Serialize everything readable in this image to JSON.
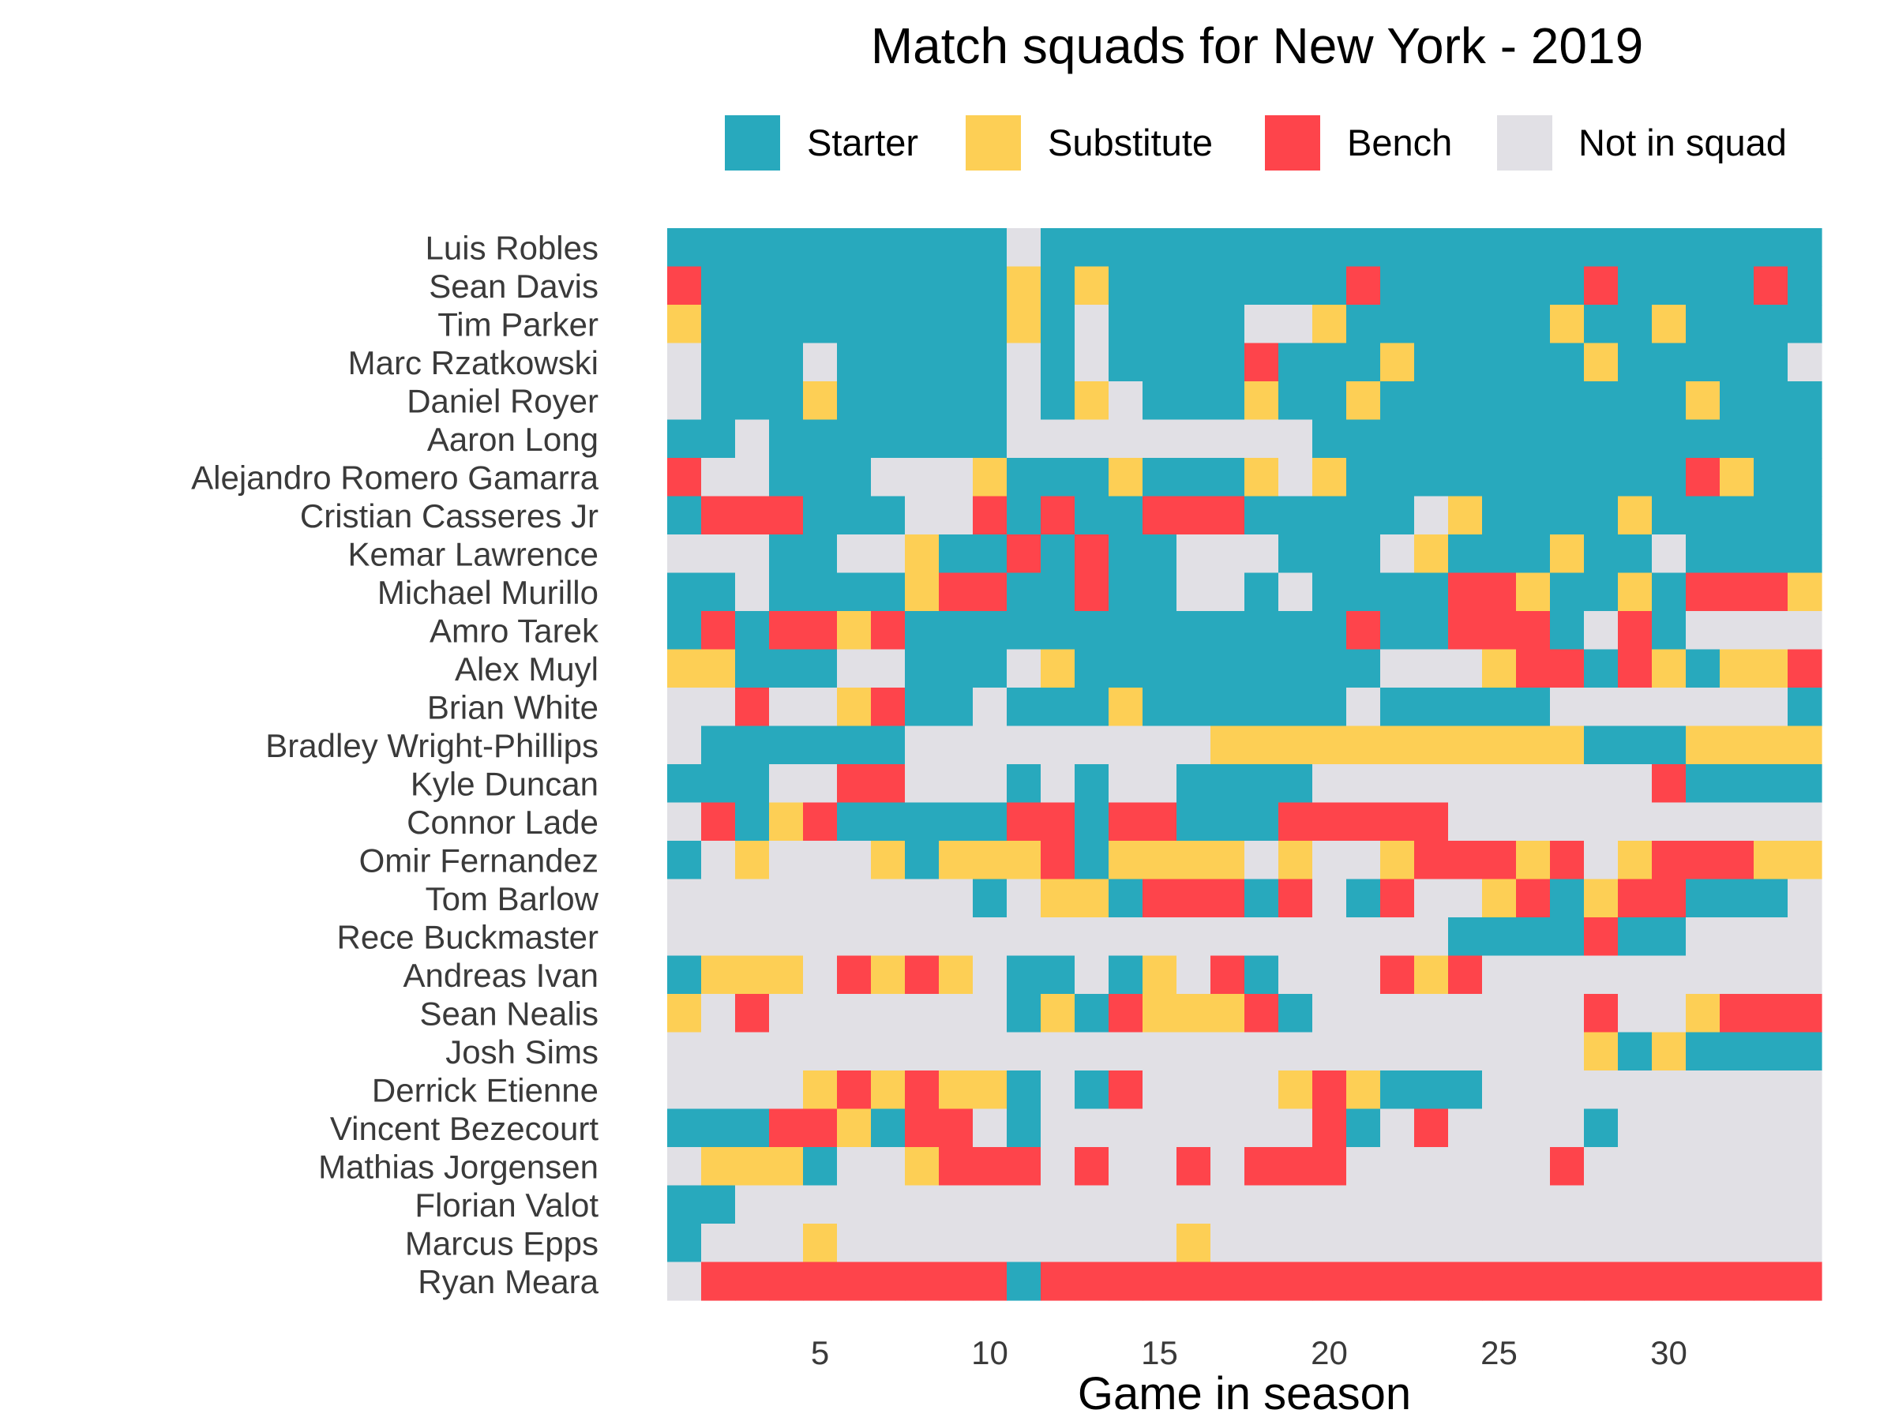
{
  "chart_data": {
    "type": "heatmap",
    "title": "Match squads for New York - 2019",
    "xlabel": "Game in season",
    "ylabel": "",
    "xlim": [
      1,
      34
    ],
    "xticks": [
      5,
      10,
      15,
      20,
      25,
      30
    ],
    "grid": false,
    "legend_position": "top",
    "legend": [
      {
        "code": "S",
        "label": "Starter",
        "color": "#28A9BD"
      },
      {
        "code": "U",
        "label": "Substitute",
        "color": "#FDCF55"
      },
      {
        "code": "B",
        "label": "Bench",
        "color": "#FE444B"
      },
      {
        "code": "N",
        "label": "Not in squad",
        "color": "#E1E0E5"
      }
    ],
    "players": [
      {
        "name": "Luis Robles",
        "games": "SSSSSSSSSSNSSSSSSSSSSSSSSSSSSSSSSS"
      },
      {
        "name": "Sean Davis",
        "games": "BSSSSSSSSSUSUSSSSSSSBSSSSSSBSSSSBS"
      },
      {
        "name": "Tim Parker",
        "games": "USSSSSSSSSUSNSSSSNNUSSSSSSUSSUSSSS"
      },
      {
        "name": "Marc Rzatkowski",
        "games": "NSSSNSSSSSNSNSSSSBSSSUSSSSSUSSSSSN"
      },
      {
        "name": "Daniel Royer",
        "games": "NSSSUSSSSSNSUNSSSUSSUSSSSSSSSSUSSS"
      },
      {
        "name": "Aaron Long",
        "games": "SSNSSSSSSSNNNNNNNNNSSSSSSSSSSSSSSS"
      },
      {
        "name": "Alejandro Romero Gamarra",
        "games": "BNNSSSNNNUSSSUSSSUNUSSSSSSSSSSBUSS"
      },
      {
        "name": "Cristian Casseres Jr",
        "games": "SBBBSSSNNBSBSSBBBSSSSSNUSSSSUSSSSS"
      },
      {
        "name": "Kemar Lawrence",
        "games": "NNNSSNNUSSBSBSSNNNSSSNUSSSUSSNSSSS"
      },
      {
        "name": "Michael Murillo",
        "games": "SSNSSSSUBBSSBSSNNSNSSSSBBUSSUSBBBU"
      },
      {
        "name": "Amro Tarek",
        "games": "SBSBBUBSSSSSSSSSSSSSBSSBBBSNBSNNNN"
      },
      {
        "name": "Alex Muyl",
        "games": "UUSSSNNSSSNUSSSSSSSSSNNNUBBSBUSUUB"
      },
      {
        "name": "Brian White",
        "games": "NNBNNUBSSNSSSUSSSSSSNSSSSSNNNNNNNS"
      },
      {
        "name": "Bradley Wright-Phillips",
        "games": "NSSSSSSNNNNNNNNNUUUUUUUUUUUSSSUUUU"
      },
      {
        "name": "Kyle Duncan",
        "games": "SSSNNBBNNNSNSNNSSSSNNNNNNNNNNBSSSS"
      },
      {
        "name": "Connor Lade",
        "games": "NBSUBSSSSSBBSBBSSSBBBBBNNNNNNNNNNN"
      },
      {
        "name": "Omir Fernandez",
        "games": "SNUNNNUSUUUBSUUUUNUNNUBBBUBNUBBBUU"
      },
      {
        "name": "Tom Barlow",
        "games": "NNNNNNNNNSNUUSBBBSBNSBNNUBSUBBSSSN"
      },
      {
        "name": "Rece Buckmaster",
        "games": "NNNNNNNNNNNNNNNNNNNNNNNSSSSBSSNNNN"
      },
      {
        "name": "Andreas Ivan",
        "games": "SUUUNBUBUNSSNSUNBSNNNBUBNNNNNNNNNN"
      },
      {
        "name": "Sean Nealis",
        "games": "UNBNNNNNNNSUSBUUUBSNNNNNNNNBNNUBBB"
      },
      {
        "name": "Josh Sims",
        "games": "NNNNNNNNNNNNNNNNNNNNNNNNNNNUSUSSSS"
      },
      {
        "name": "Derrick Etienne",
        "games": "NNNNUBUBUUSNSBNNNNUBUSSSNNNNNNNNNN"
      },
      {
        "name": "Vincent Bezecourt",
        "games": "SSSBBUSBBNSNNNNNNNNBSNBNNNNSNNNNNN"
      },
      {
        "name": "Mathias Jorgensen",
        "games": "NUUUSNNUBBBNBNNBNBBBNNNNNNBNNNNNNN"
      },
      {
        "name": "Florian Valot",
        "games": "SSNNNNNNNNNNNNNNNNNNNNNNNNNNNNNNNN"
      },
      {
        "name": "Marcus Epps",
        "games": "SNNNUNNNNNNNNNNUNNNNNNNNNNNNNNNNNN"
      },
      {
        "name": "Ryan Meara",
        "games": "NBBBBBBBBBSBBBBBBBBBBBBBBBBBBBBBBB"
      }
    ]
  }
}
